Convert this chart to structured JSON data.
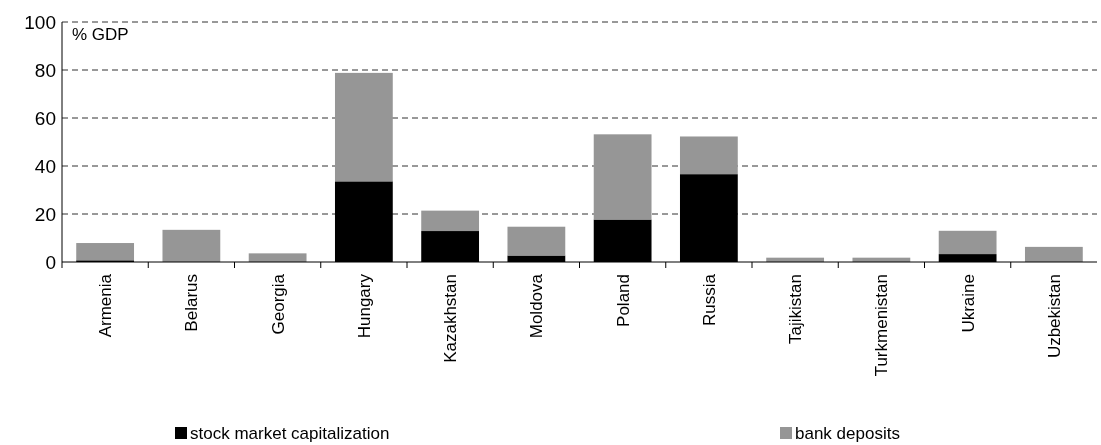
{
  "chart_data": {
    "type": "bar",
    "stacked": true,
    "ylabel": "% GDP",
    "categories": [
      "Armenia",
      "Belarus",
      "Georgia",
      "Hungary",
      "Kazakhstan",
      "Moldova",
      "Poland",
      "Russia",
      "Tajikistan",
      "Turkmenistan",
      "Ukraine",
      "Uzbekistan"
    ],
    "series": [
      {
        "name": "stock market capitalization",
        "color": "#000000",
        "values": [
          0.7,
          0,
          0,
          33.6,
          12.9,
          2.7,
          17.7,
          36.6,
          0,
          0,
          3.3,
          0
        ]
      },
      {
        "name": "bank deposits",
        "color": "#969696",
        "values": [
          7.2,
          13.4,
          3.6,
          45.2,
          8.5,
          12.0,
          35.5,
          15.7,
          1.8,
          1.8,
          9.7,
          6.3
        ]
      }
    ],
    "ylim": [
      0,
      100
    ],
    "yticks": [
      0,
      20,
      40,
      60,
      80,
      100
    ],
    "grid": "y",
    "legend": "bottom"
  }
}
